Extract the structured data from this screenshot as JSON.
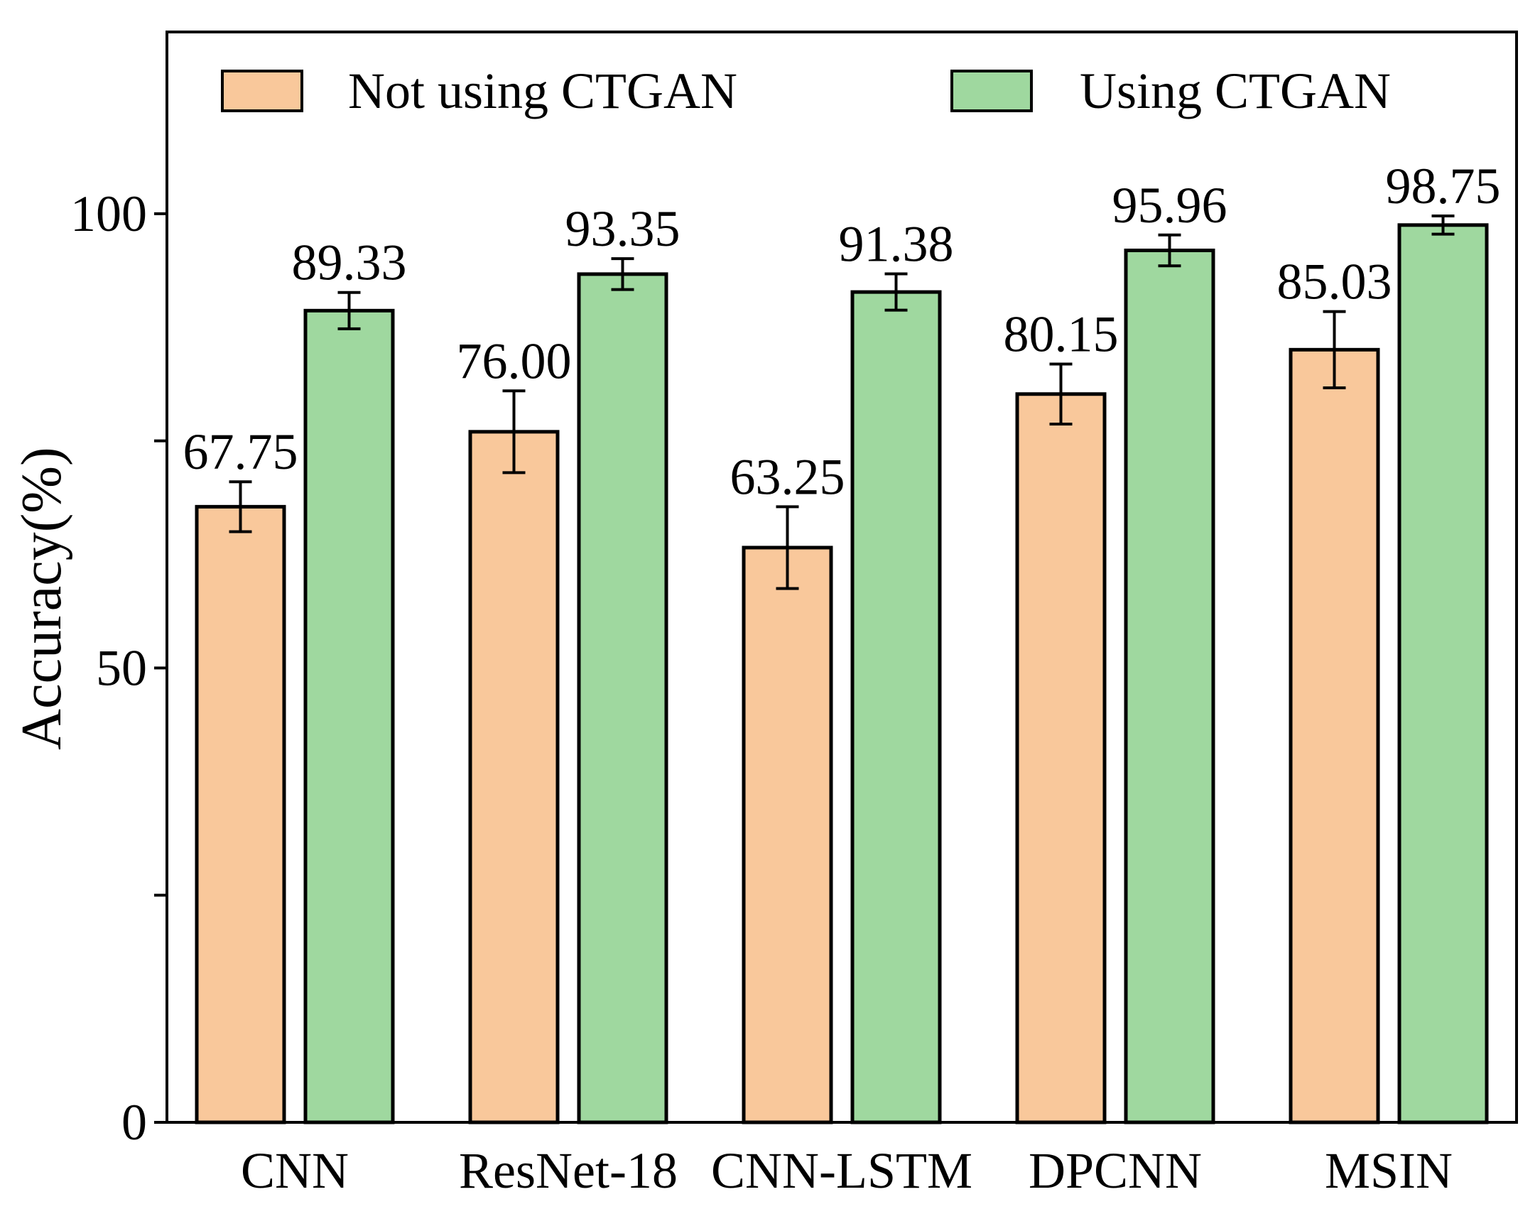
{
  "chart_data": {
    "type": "bar",
    "title": "",
    "xlabel": "",
    "ylabel": "Accuracy(%)",
    "ylim": [
      0,
      120
    ],
    "yticks": [
      0,
      50,
      100
    ],
    "yticks_labeled": [
      "0",
      "50",
      "100"
    ],
    "grid": false,
    "legend_position": "top",
    "categories": [
      "CNN",
      "ResNet-18",
      "CNN-LSTM",
      "DPCNN",
      "MSIN"
    ],
    "series": [
      {
        "name": "Not using CTGAN",
        "color": "#F9C89B",
        "values": [
          67.75,
          76.0,
          63.25,
          80.15,
          85.03
        ],
        "labels": [
          "67.75",
          "76.00",
          "63.25",
          "80.15",
          "85.03"
        ],
        "errors": [
          2.75,
          4.5,
          4.5,
          3.3,
          4.2
        ]
      },
      {
        "name": "Using CTGAN",
        "color": "#9FD89F",
        "values": [
          89.33,
          93.35,
          91.38,
          95.96,
          98.75
        ],
        "labels": [
          "89.33",
          "93.35",
          "91.38",
          "95.96",
          "98.75"
        ],
        "errors": [
          2.0,
          1.7,
          2.0,
          1.7,
          1.0
        ]
      }
    ]
  }
}
